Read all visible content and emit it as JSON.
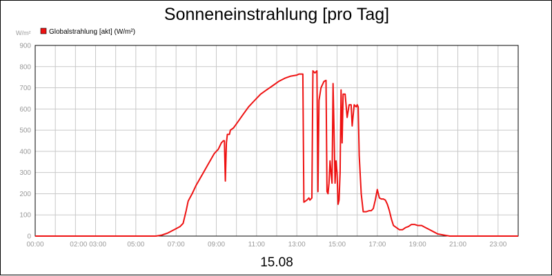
{
  "chart_data": {
    "type": "line",
    "title": "Sonneneinstrahlung [pro Tag]",
    "ylabel": "W/m²",
    "xlabel": "15.08",
    "ylim": [
      0,
      900
    ],
    "xlim": [
      0,
      24
    ],
    "y_ticks": [
      0,
      100,
      200,
      300,
      400,
      500,
      600,
      700,
      800,
      900
    ],
    "x_ticks": [
      {
        "x": 0,
        "label": "00:00"
      },
      {
        "x": 2.63,
        "label": "02:00 03:00"
      },
      {
        "x": 5,
        "label": "05:00"
      },
      {
        "x": 7,
        "label": "07:00"
      },
      {
        "x": 9,
        "label": "09:00"
      },
      {
        "x": 11,
        "label": "11:00"
      },
      {
        "x": 13,
        "label": "13:00"
      },
      {
        "x": 15,
        "label": "15:00"
      },
      {
        "x": 17,
        "label": "17:00"
      },
      {
        "x": 19,
        "label": "19:00"
      },
      {
        "x": 21,
        "label": "21:00"
      },
      {
        "x": 23,
        "label": "23:00"
      }
    ],
    "grid": true,
    "legend_position": "top-left",
    "series": [
      {
        "name": "Globalstrahlung [akt] (W/m²)",
        "color": "#ee1111",
        "points": [
          [
            0,
            0
          ],
          [
            6.0,
            0
          ],
          [
            6.3,
            5
          ],
          [
            6.6,
            15
          ],
          [
            6.9,
            30
          ],
          [
            7.2,
            45
          ],
          [
            7.35,
            60
          ],
          [
            7.5,
            120
          ],
          [
            7.6,
            165
          ],
          [
            7.8,
            200
          ],
          [
            8.0,
            240
          ],
          [
            8.3,
            290
          ],
          [
            8.6,
            340
          ],
          [
            8.9,
            390
          ],
          [
            9.1,
            410
          ],
          [
            9.25,
            440
          ],
          [
            9.35,
            450
          ],
          [
            9.4,
            450
          ],
          [
            9.45,
            260
          ],
          [
            9.5,
            440
          ],
          [
            9.55,
            480
          ],
          [
            9.65,
            480
          ],
          [
            9.7,
            500
          ],
          [
            9.85,
            510
          ],
          [
            10.0,
            530
          ],
          [
            10.3,
            570
          ],
          [
            10.6,
            610
          ],
          [
            10.9,
            640
          ],
          [
            11.2,
            670
          ],
          [
            11.5,
            690
          ],
          [
            11.8,
            710
          ],
          [
            12.1,
            730
          ],
          [
            12.4,
            745
          ],
          [
            12.7,
            755
          ],
          [
            13.0,
            760
          ],
          [
            13.1,
            765
          ],
          [
            13.2,
            765
          ],
          [
            13.3,
            765
          ],
          [
            13.35,
            160
          ],
          [
            13.5,
            170
          ],
          [
            13.6,
            180
          ],
          [
            13.65,
            170
          ],
          [
            13.75,
            180
          ],
          [
            13.8,
            780
          ],
          [
            13.9,
            770
          ],
          [
            14.0,
            780
          ],
          [
            14.05,
            210
          ],
          [
            14.1,
            640
          ],
          [
            14.2,
            700
          ],
          [
            14.35,
            730
          ],
          [
            14.45,
            735
          ],
          [
            14.5,
            210
          ],
          [
            14.55,
            200
          ],
          [
            14.6,
            250
          ],
          [
            14.65,
            355
          ],
          [
            14.7,
            300
          ],
          [
            14.75,
            250
          ],
          [
            14.8,
            720
          ],
          [
            14.85,
            500
          ],
          [
            14.9,
            250
          ],
          [
            14.95,
            355
          ],
          [
            15.0,
            300
          ],
          [
            15.05,
            150
          ],
          [
            15.1,
            170
          ],
          [
            15.15,
            300
          ],
          [
            15.2,
            690
          ],
          [
            15.25,
            440
          ],
          [
            15.3,
            670
          ],
          [
            15.4,
            670
          ],
          [
            15.5,
            560
          ],
          [
            15.6,
            620
          ],
          [
            15.7,
            620
          ],
          [
            15.75,
            520
          ],
          [
            15.85,
            620
          ],
          [
            15.95,
            610
          ],
          [
            16.0,
            620
          ],
          [
            16.05,
            610
          ],
          [
            16.1,
            380
          ],
          [
            16.2,
            200
          ],
          [
            16.3,
            115
          ],
          [
            16.45,
            115
          ],
          [
            16.6,
            120
          ],
          [
            16.7,
            120
          ],
          [
            16.8,
            130
          ],
          [
            16.9,
            170
          ],
          [
            17.0,
            220
          ],
          [
            17.1,
            180
          ],
          [
            17.2,
            175
          ],
          [
            17.3,
            175
          ],
          [
            17.4,
            170
          ],
          [
            17.5,
            150
          ],
          [
            17.6,
            120
          ],
          [
            17.7,
            80
          ],
          [
            17.8,
            50
          ],
          [
            17.95,
            40
          ],
          [
            18.1,
            30
          ],
          [
            18.25,
            30
          ],
          [
            18.4,
            40
          ],
          [
            18.55,
            45
          ],
          [
            18.7,
            55
          ],
          [
            18.85,
            55
          ],
          [
            19.0,
            50
          ],
          [
            19.2,
            50
          ],
          [
            19.4,
            40
          ],
          [
            19.6,
            30
          ],
          [
            19.8,
            20
          ],
          [
            20.0,
            10
          ],
          [
            20.3,
            5
          ],
          [
            20.6,
            0
          ],
          [
            24,
            0
          ]
        ]
      }
    ]
  }
}
